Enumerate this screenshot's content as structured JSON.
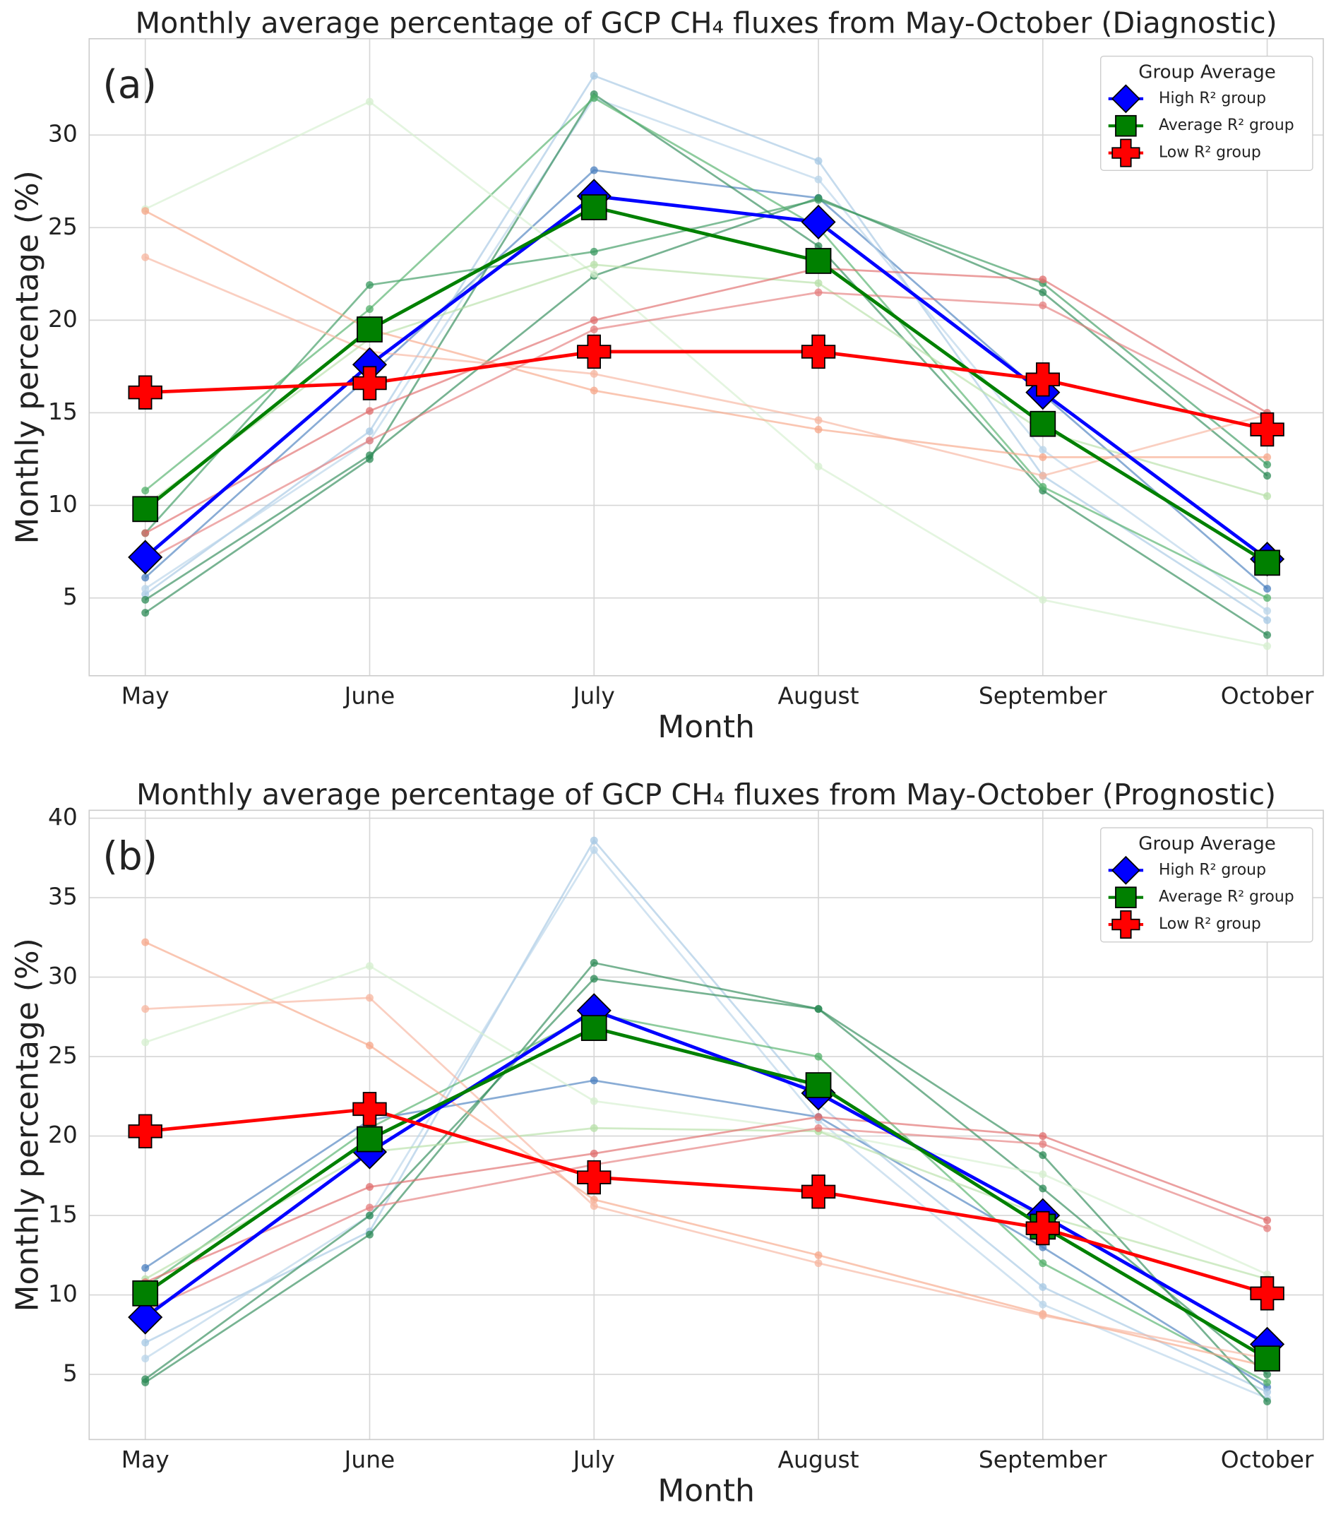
{
  "chart_data": [
    {
      "type": "line",
      "panel_label": "(a)",
      "title": "Monthly average percentage of GCP CH₄ fluxes from May-October (Diagnostic)",
      "xlabel": "Month",
      "ylabel": "Monthly percentage (%)",
      "categories": [
        "May",
        "June",
        "July",
        "August",
        "September",
        "October"
      ],
      "ylim": [
        0.8,
        35.2
      ],
      "yticks": [
        5,
        10,
        15,
        20,
        25,
        30
      ],
      "grid": true,
      "legend": {
        "title": "Group Average",
        "position": "upper right"
      },
      "series": [
        {
          "name": "High R² group",
          "color": "#0000ff",
          "marker": "diamond",
          "values": [
            7.2,
            17.6,
            26.7,
            25.3,
            16.1,
            7.1
          ]
        },
        {
          "name": "Average R² group",
          "color": "#008000",
          "marker": "square",
          "values": [
            9.8,
            19.5,
            26.1,
            23.2,
            14.4,
            6.9
          ]
        },
        {
          "name": "Low R² group",
          "color": "#ff0000",
          "marker": "plus",
          "values": [
            16.1,
            16.6,
            18.3,
            18.3,
            16.8,
            14.1
          ]
        }
      ],
      "members": [
        {
          "color": "#4a7fbf",
          "values": [
            6.1,
            17,
            28.1,
            26.6,
            16,
            5.5
          ]
        },
        {
          "color": "#a6c8e4",
          "values": [
            5.2,
            14,
            33.2,
            28.6,
            11.6,
            3.8
          ]
        },
        {
          "color": "#b8d4ea",
          "values": [
            5.5,
            13.5,
            32,
            27.6,
            13,
            4.3
          ]
        },
        {
          "color": "#2e8b57",
          "values": [
            4.2,
            12.5,
            32.2,
            24,
            10.8,
            3
          ]
        },
        {
          "color": "#2e8b57",
          "values": [
            4.9,
            12.7,
            22.4,
            26.6,
            21.5,
            11.6
          ]
        },
        {
          "color": "#3a9a60",
          "values": [
            8.5,
            21.9,
            23.7,
            26.5,
            22,
            12.2
          ]
        },
        {
          "color": "#52b06a",
          "values": [
            10.8,
            20.6,
            32,
            25,
            11,
            5
          ]
        },
        {
          "color": "#d6efcf",
          "values": [
            26,
            31.8,
            22.5,
            12.1,
            4.9,
            2.4
          ]
        },
        {
          "color": "#b7e0a8",
          "values": [
            10,
            19,
            23,
            22,
            14,
            10.5
          ]
        },
        {
          "color": "#f7a789",
          "values": [
            25.9,
            19.5,
            16.2,
            14.1,
            12.6,
            12.6
          ]
        },
        {
          "color": "#f7b69f",
          "values": [
            23.4,
            18.3,
            17.1,
            14.6,
            11.6,
            14.9
          ]
        },
        {
          "color": "#e06c6c",
          "values": [
            8.5,
            15.1,
            20,
            22.8,
            22.2,
            15
          ]
        },
        {
          "color": "#e57e7e",
          "values": [
            7,
            13.5,
            19.5,
            21.5,
            20.8,
            14.7
          ]
        }
      ]
    },
    {
      "type": "line",
      "panel_label": "(b)",
      "title": "Monthly average percentage of GCP CH₄ fluxes from May-October (Prognostic)",
      "xlabel": "Month",
      "ylabel": "Monthly percentage (%)",
      "categories": [
        "May",
        "June",
        "July",
        "August",
        "September",
        "October"
      ],
      "ylim": [
        0.9,
        40.5
      ],
      "yticks": [
        5,
        10,
        15,
        20,
        25,
        30,
        35,
        40
      ],
      "grid": true,
      "legend": {
        "title": "Group Average",
        "position": "upper right"
      },
      "series": [
        {
          "name": "High R² group",
          "color": "#0000ff",
          "marker": "diamond",
          "values": [
            8.6,
            19.0,
            27.9,
            22.7,
            15.0,
            6.9
          ]
        },
        {
          "name": "Average R² group",
          "color": "#008000",
          "marker": "square",
          "values": [
            10.1,
            19.8,
            26.8,
            23.2,
            14.3,
            6.0
          ]
        },
        {
          "name": "Low R² group",
          "color": "#ff0000",
          "marker": "plus",
          "values": [
            20.3,
            21.7,
            17.4,
            16.5,
            14.2,
            10.1
          ]
        }
      ],
      "members": [
        {
          "color": "#4a7fbf",
          "values": [
            11.7,
            21,
            23.5,
            21.2,
            13,
            4.2
          ]
        },
        {
          "color": "#a6c8e4",
          "values": [
            7,
            14,
            38.6,
            22,
            10.5,
            3.9
          ]
        },
        {
          "color": "#b8d4ea",
          "values": [
            6,
            15,
            38,
            21,
            9.4,
            3.5
          ]
        },
        {
          "color": "#2e8b57",
          "values": [
            4.5,
            13.8,
            30.9,
            28,
            18.8,
            3.3
          ]
        },
        {
          "color": "#2e8b57",
          "values": [
            4.7,
            15,
            29.9,
            28,
            16.7,
            5
          ]
        },
        {
          "color": "#52b06a",
          "values": [
            10.5,
            20.5,
            27.7,
            25,
            12,
            4.5
          ]
        },
        {
          "color": "#d6efcf",
          "values": [
            25.9,
            30.7,
            22.2,
            20.3,
            17.6,
            11.3
          ]
        },
        {
          "color": "#b7e0a8",
          "values": [
            11,
            19,
            20.5,
            20.3,
            15,
            11
          ]
        },
        {
          "color": "#f7a789",
          "values": [
            32.2,
            25.7,
            16,
            12.5,
            8.8,
            5.5
          ]
        },
        {
          "color": "#f7b69f",
          "values": [
            28,
            28.7,
            15.6,
            12,
            8.7,
            6
          ]
        },
        {
          "color": "#e06c6c",
          "values": [
            10.8,
            16.8,
            18.9,
            21.2,
            20,
            14.7
          ]
        },
        {
          "color": "#e57e7e",
          "values": [
            9,
            15.5,
            18.2,
            20.5,
            19.5,
            14.2
          ]
        }
      ]
    }
  ]
}
